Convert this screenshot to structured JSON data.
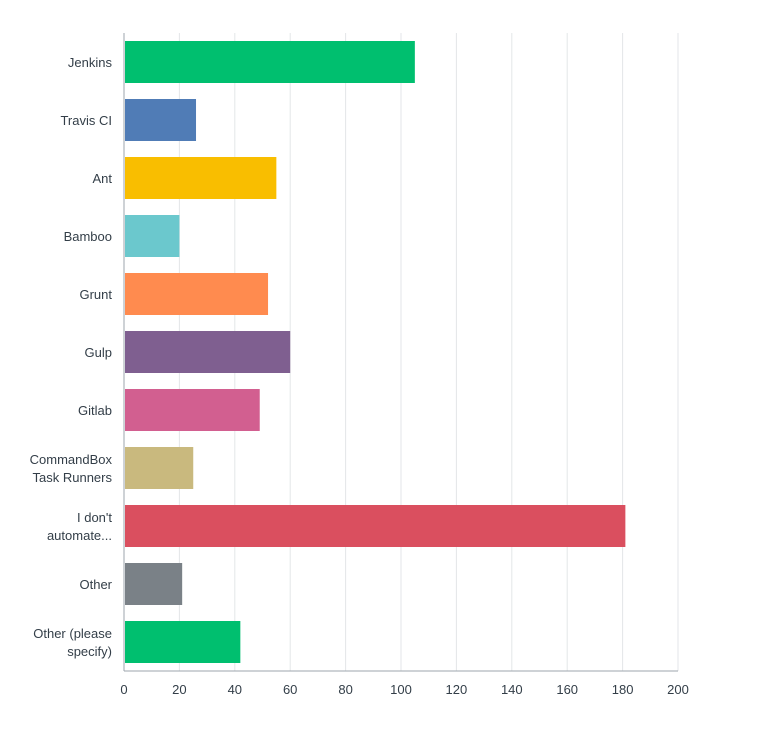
{
  "chart_data": {
    "type": "bar",
    "orientation": "horizontal",
    "categories": [
      [
        "Jenkins"
      ],
      [
        "Travis CI"
      ],
      [
        "Ant"
      ],
      [
        "Bamboo"
      ],
      [
        "Grunt"
      ],
      [
        "Gulp"
      ],
      [
        "Gitlab"
      ],
      [
        "CommandBox",
        "Task Runners"
      ],
      [
        "I don't",
        "automate..."
      ],
      [
        "Other"
      ],
      [
        "Other (please",
        "specify)"
      ]
    ],
    "values": [
      105,
      26,
      55,
      20,
      52,
      60,
      49,
      25,
      181,
      21,
      42
    ],
    "colors": [
      "#00bf6f",
      "#507cb6",
      "#f9be00",
      "#6bc8cd",
      "#ff8b4f",
      "#7f5f90",
      "#d25f90",
      "#c9b97e",
      "#da4f5f",
      "#7a8187",
      "#00bf6f"
    ],
    "xlim": [
      0,
      200
    ],
    "xticks": [
      "0",
      "20",
      "40",
      "60",
      "80",
      "100",
      "120",
      "140",
      "160",
      "180",
      "200"
    ],
    "grid": true,
    "title": "",
    "xlabel": "",
    "ylabel": ""
  }
}
